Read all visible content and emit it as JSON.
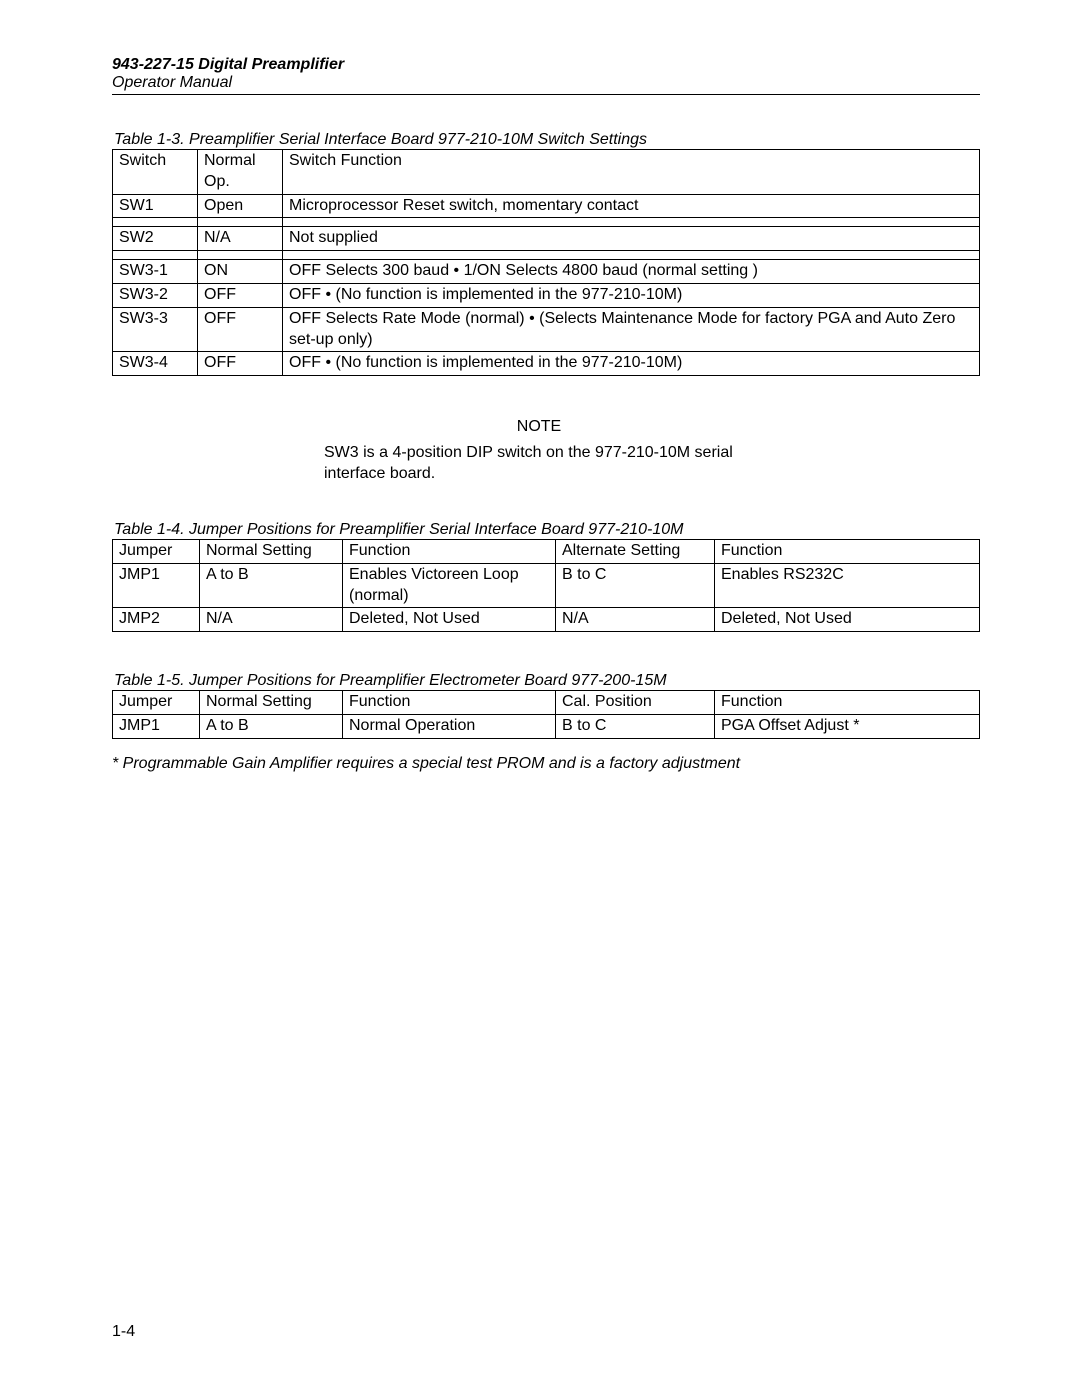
{
  "header": {
    "title": "943-227-15 Digital Preamplifier",
    "subtitle": "Operator Manual"
  },
  "table1": {
    "caption": "Table 1-3.   Preamplifier Serial Interface Board 977-210-10M Switch Settings",
    "columns": [
      "Switch",
      "Normal Op.",
      "Switch Function"
    ],
    "rows": [
      [
        "SW1",
        "Open",
        "Microprocessor Reset switch, momentary contact"
      ],
      [
        "",
        "",
        ""
      ],
      [
        "SW2",
        "N/A",
        "Not supplied"
      ],
      [
        "",
        "",
        ""
      ],
      [
        "SW3-1",
        "ON",
        "OFF Selects 300 baud  •  1/ON Selects 4800 baud (normal setting      )"
      ],
      [
        "SW3-2",
        "OFF",
        "OFF •  (No function is implemented in the 977-210-10M)"
      ],
      [
        "SW3-3",
        "OFF",
        "OFF Selects Rate Mode (normal) • (Selects Maintenance Mode for factory PGA and Auto Zero set-up only)"
      ],
      [
        "SW3-4",
        "OFF",
        "OFF • (No function is implemented in the 977-210-10M)"
      ]
    ]
  },
  "note": {
    "label": "NOTE",
    "text": "SW3 is a 4-position DIP switch on the 977-210-10M serial interface board."
  },
  "table2": {
    "caption": "Table 1-4.   Jumper Positions for Preamplifier Serial Interface Board 977-210-10M",
    "columns": [
      "Jumper",
      "Normal Setting",
      "Function",
      "Alternate Setting",
      "Function"
    ],
    "rows": [
      [
        "JMP1",
        "A to B",
        "Enables Victoreen Loop (normal)",
        "B to C",
        "Enables RS232C"
      ],
      [
        "JMP2",
        "N/A",
        "Deleted, Not Used",
        "N/A",
        "Deleted, Not Used"
      ]
    ]
  },
  "table3": {
    "caption": "Table 1-5.   Jumper Positions for Preamplifier Electrometer Board 977-200-15M",
    "columns": [
      "Jumper",
      "Normal Setting",
      "Function",
      "Cal. Position",
      "Function"
    ],
    "rows": [
      [
        "JMP1",
        "A to B",
        "Normal Operation",
        "B to C",
        "PGA Offset Adjust *"
      ]
    ]
  },
  "footnote": "* Programmable Gain Amplifier requires a special test PROM and is a factory adjustment",
  "pageNumber": "1-4"
}
